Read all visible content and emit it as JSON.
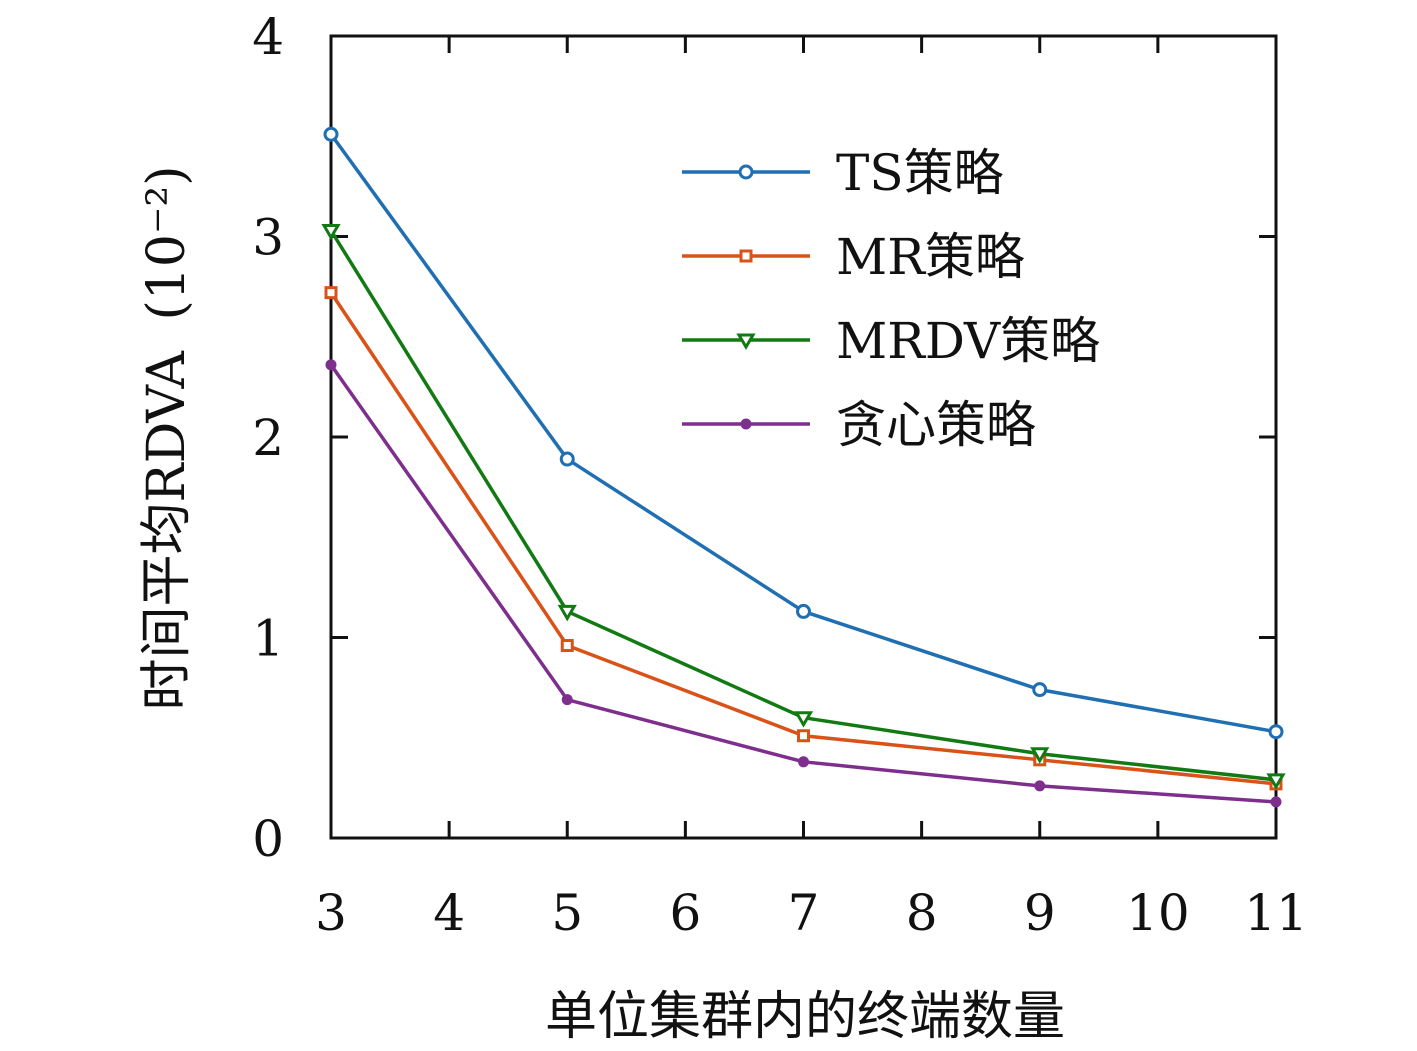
{
  "chart_data": {
    "type": "line",
    "title": "",
    "xlabel": "单位集群内的终端数量",
    "ylabel": "时间平均RDVA",
    "ylabel_unit": "(10⁻²)",
    "x_ticks": [
      3,
      4,
      5,
      6,
      7,
      8,
      9,
      10,
      11
    ],
    "y_ticks": [
      0,
      1,
      2,
      3,
      4
    ],
    "xlim": [
      3,
      11
    ],
    "ylim": [
      0,
      4
    ],
    "grid": false,
    "legend_position": "top-right",
    "x": [
      3,
      5,
      7,
      9,
      11
    ],
    "series": [
      {
        "name": "TS策略",
        "color": "#1f6fb2",
        "marker": "circle-open",
        "values": [
          3.51,
          1.89,
          1.13,
          0.74,
          0.53
        ]
      },
      {
        "name": "MR策略",
        "color": "#d95319",
        "marker": "square-open",
        "values": [
          2.72,
          0.96,
          0.51,
          0.39,
          0.27
        ]
      },
      {
        "name": "MRDV策略",
        "color": "#127a12",
        "marker": "triangle-down-open",
        "values": [
          3.03,
          1.13,
          0.6,
          0.42,
          0.29
        ]
      },
      {
        "name": "贪心策略",
        "color": "#7e2f8e",
        "marker": "dot",
        "values": [
          2.36,
          0.69,
          0.38,
          0.26,
          0.18
        ]
      }
    ]
  }
}
